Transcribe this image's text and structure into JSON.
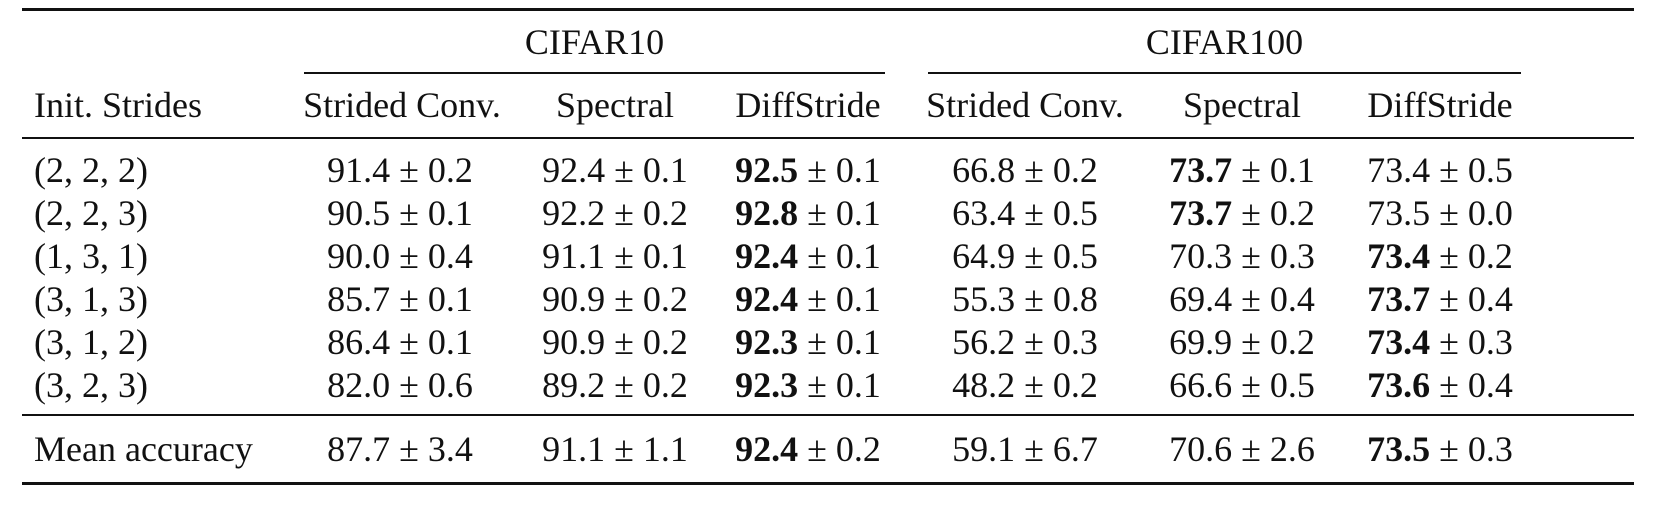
{
  "table": {
    "group_headers": [
      "CIFAR10",
      "CIFAR100"
    ],
    "columns": [
      "Init. Strides",
      "Strided Conv.",
      "Spectral",
      "DiffStride",
      "Strided Conv.",
      "Spectral",
      "DiffStride"
    ],
    "pm": "±",
    "rows": [
      {
        "label": "(2, 2, 2)",
        "cells": [
          {
            "mean": "91.4",
            "std": "0.2",
            "bold": false
          },
          {
            "mean": "92.4",
            "std": "0.1",
            "bold": false
          },
          {
            "mean": "92.5",
            "std": "0.1",
            "bold": true
          },
          {
            "mean": "66.8",
            "std": "0.2",
            "bold": false
          },
          {
            "mean": "73.7",
            "std": "0.1",
            "bold": true
          },
          {
            "mean": "73.4",
            "std": "0.5",
            "bold": false
          }
        ]
      },
      {
        "label": "(2, 2, 3)",
        "cells": [
          {
            "mean": "90.5",
            "std": "0.1",
            "bold": false
          },
          {
            "mean": "92.2",
            "std": "0.2",
            "bold": false
          },
          {
            "mean": "92.8",
            "std": "0.1",
            "bold": true
          },
          {
            "mean": "63.4",
            "std": "0.5",
            "bold": false
          },
          {
            "mean": "73.7",
            "std": "0.2",
            "bold": true
          },
          {
            "mean": "73.5",
            "std": "0.0",
            "bold": false
          }
        ]
      },
      {
        "label": "(1, 3, 1)",
        "cells": [
          {
            "mean": "90.0",
            "std": "0.4",
            "bold": false
          },
          {
            "mean": "91.1",
            "std": "0.1",
            "bold": false
          },
          {
            "mean": "92.4",
            "std": "0.1",
            "bold": true
          },
          {
            "mean": "64.9",
            "std": "0.5",
            "bold": false
          },
          {
            "mean": "70.3",
            "std": "0.3",
            "bold": false
          },
          {
            "mean": "73.4",
            "std": "0.2",
            "bold": true
          }
        ]
      },
      {
        "label": "(3, 1, 3)",
        "cells": [
          {
            "mean": "85.7",
            "std": "0.1",
            "bold": false
          },
          {
            "mean": "90.9",
            "std": "0.2",
            "bold": false
          },
          {
            "mean": "92.4",
            "std": "0.1",
            "bold": true
          },
          {
            "mean": "55.3",
            "std": "0.8",
            "bold": false
          },
          {
            "mean": "69.4",
            "std": "0.4",
            "bold": false
          },
          {
            "mean": "73.7",
            "std": "0.4",
            "bold": true
          }
        ]
      },
      {
        "label": "(3, 1, 2)",
        "cells": [
          {
            "mean": "86.4",
            "std": "0.1",
            "bold": false
          },
          {
            "mean": "90.9",
            "std": "0.2",
            "bold": false
          },
          {
            "mean": "92.3",
            "std": "0.1",
            "bold": true
          },
          {
            "mean": "56.2",
            "std": "0.3",
            "bold": false
          },
          {
            "mean": "69.9",
            "std": "0.2",
            "bold": false
          },
          {
            "mean": "73.4",
            "std": "0.3",
            "bold": true
          }
        ]
      },
      {
        "label": "(3, 2, 3)",
        "cells": [
          {
            "mean": "82.0",
            "std": "0.6",
            "bold": false
          },
          {
            "mean": "89.2",
            "std": "0.2",
            "bold": false
          },
          {
            "mean": "92.3",
            "std": "0.1",
            "bold": true
          },
          {
            "mean": "48.2",
            "std": "0.2",
            "bold": false
          },
          {
            "mean": "66.6",
            "std": "0.5",
            "bold": false
          },
          {
            "mean": "73.6",
            "std": "0.4",
            "bold": true
          }
        ]
      }
    ],
    "summary": {
      "label": "Mean accuracy",
      "cells": [
        {
          "mean": "87.7",
          "std": "3.4",
          "bold": false
        },
        {
          "mean": "91.1",
          "std": "1.1",
          "bold": false
        },
        {
          "mean": "92.4",
          "std": "0.2",
          "bold": true
        },
        {
          "mean": "59.1",
          "std": "6.7",
          "bold": false
        },
        {
          "mean": "70.6",
          "std": "2.6",
          "bold": false
        },
        {
          "mean": "73.5",
          "std": "0.3",
          "bold": true
        }
      ]
    }
  }
}
